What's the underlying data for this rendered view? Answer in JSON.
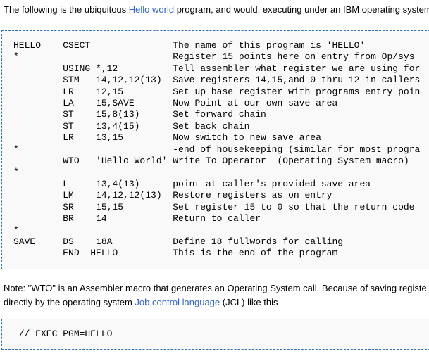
{
  "intro": {
    "text_before_link": "The following is the ubiquitous ",
    "link_label": "Hello world",
    "text_after_link": " program, and would, executing under an IBM operating system"
  },
  "code_block_1": {
    "lines": [
      "HELLO    CSECT               The name of this program is 'HELLO'",
      "*                            Register 15 points here on entry from Op/sys",
      "         USING *,12          Tell assembler what register we are using for",
      "         STM   14,12,12(13)  Save registers 14,15,and 0 thru 12 in callers",
      "         LR    12,15         Set up base register with programs entry poin",
      "         LA    15,SAVE       Now Point at our own save area",
      "         ST    15,8(13)      Set forward chain",
      "         ST    13,4(15)      Set back chain",
      "         LR    13,15         Now switch to new save area",
      "*                            -end of housekeeping (similar for most progra",
      "         WTO   'Hello World' Write To Operator  (Operating System macro)",
      "*",
      "         L     13,4(13)      point at caller's-provided save area",
      "         LM    14,12,12(13)  Restore registers as on entry",
      "         SR    15,15         Set register 15 to 0 so that the return code",
      "         BR    14            Return to caller",
      "*",
      "SAVE     DS    18A           Define 18 fullwords for calling",
      "         END  HELLO          This is the end of the program"
    ]
  },
  "note": {
    "line1": "Note: \"WTO\" is an Assembler macro that generates an Operating System call. Because of saving registe",
    "line2_before_link": "directly by the operating system ",
    "line2_link_label": "Job control language",
    "line2_after_link": " (JCL) like this"
  },
  "code_block_2": {
    "lines": [
      " // EXEC PGM=HELLO"
    ]
  },
  "colors": {
    "link_blue": "#3366cc",
    "code_border_blue": "#2f6fab",
    "code_background": "#f9f9f9",
    "text_black": "#000000",
    "page_background": "#ffffff"
  }
}
